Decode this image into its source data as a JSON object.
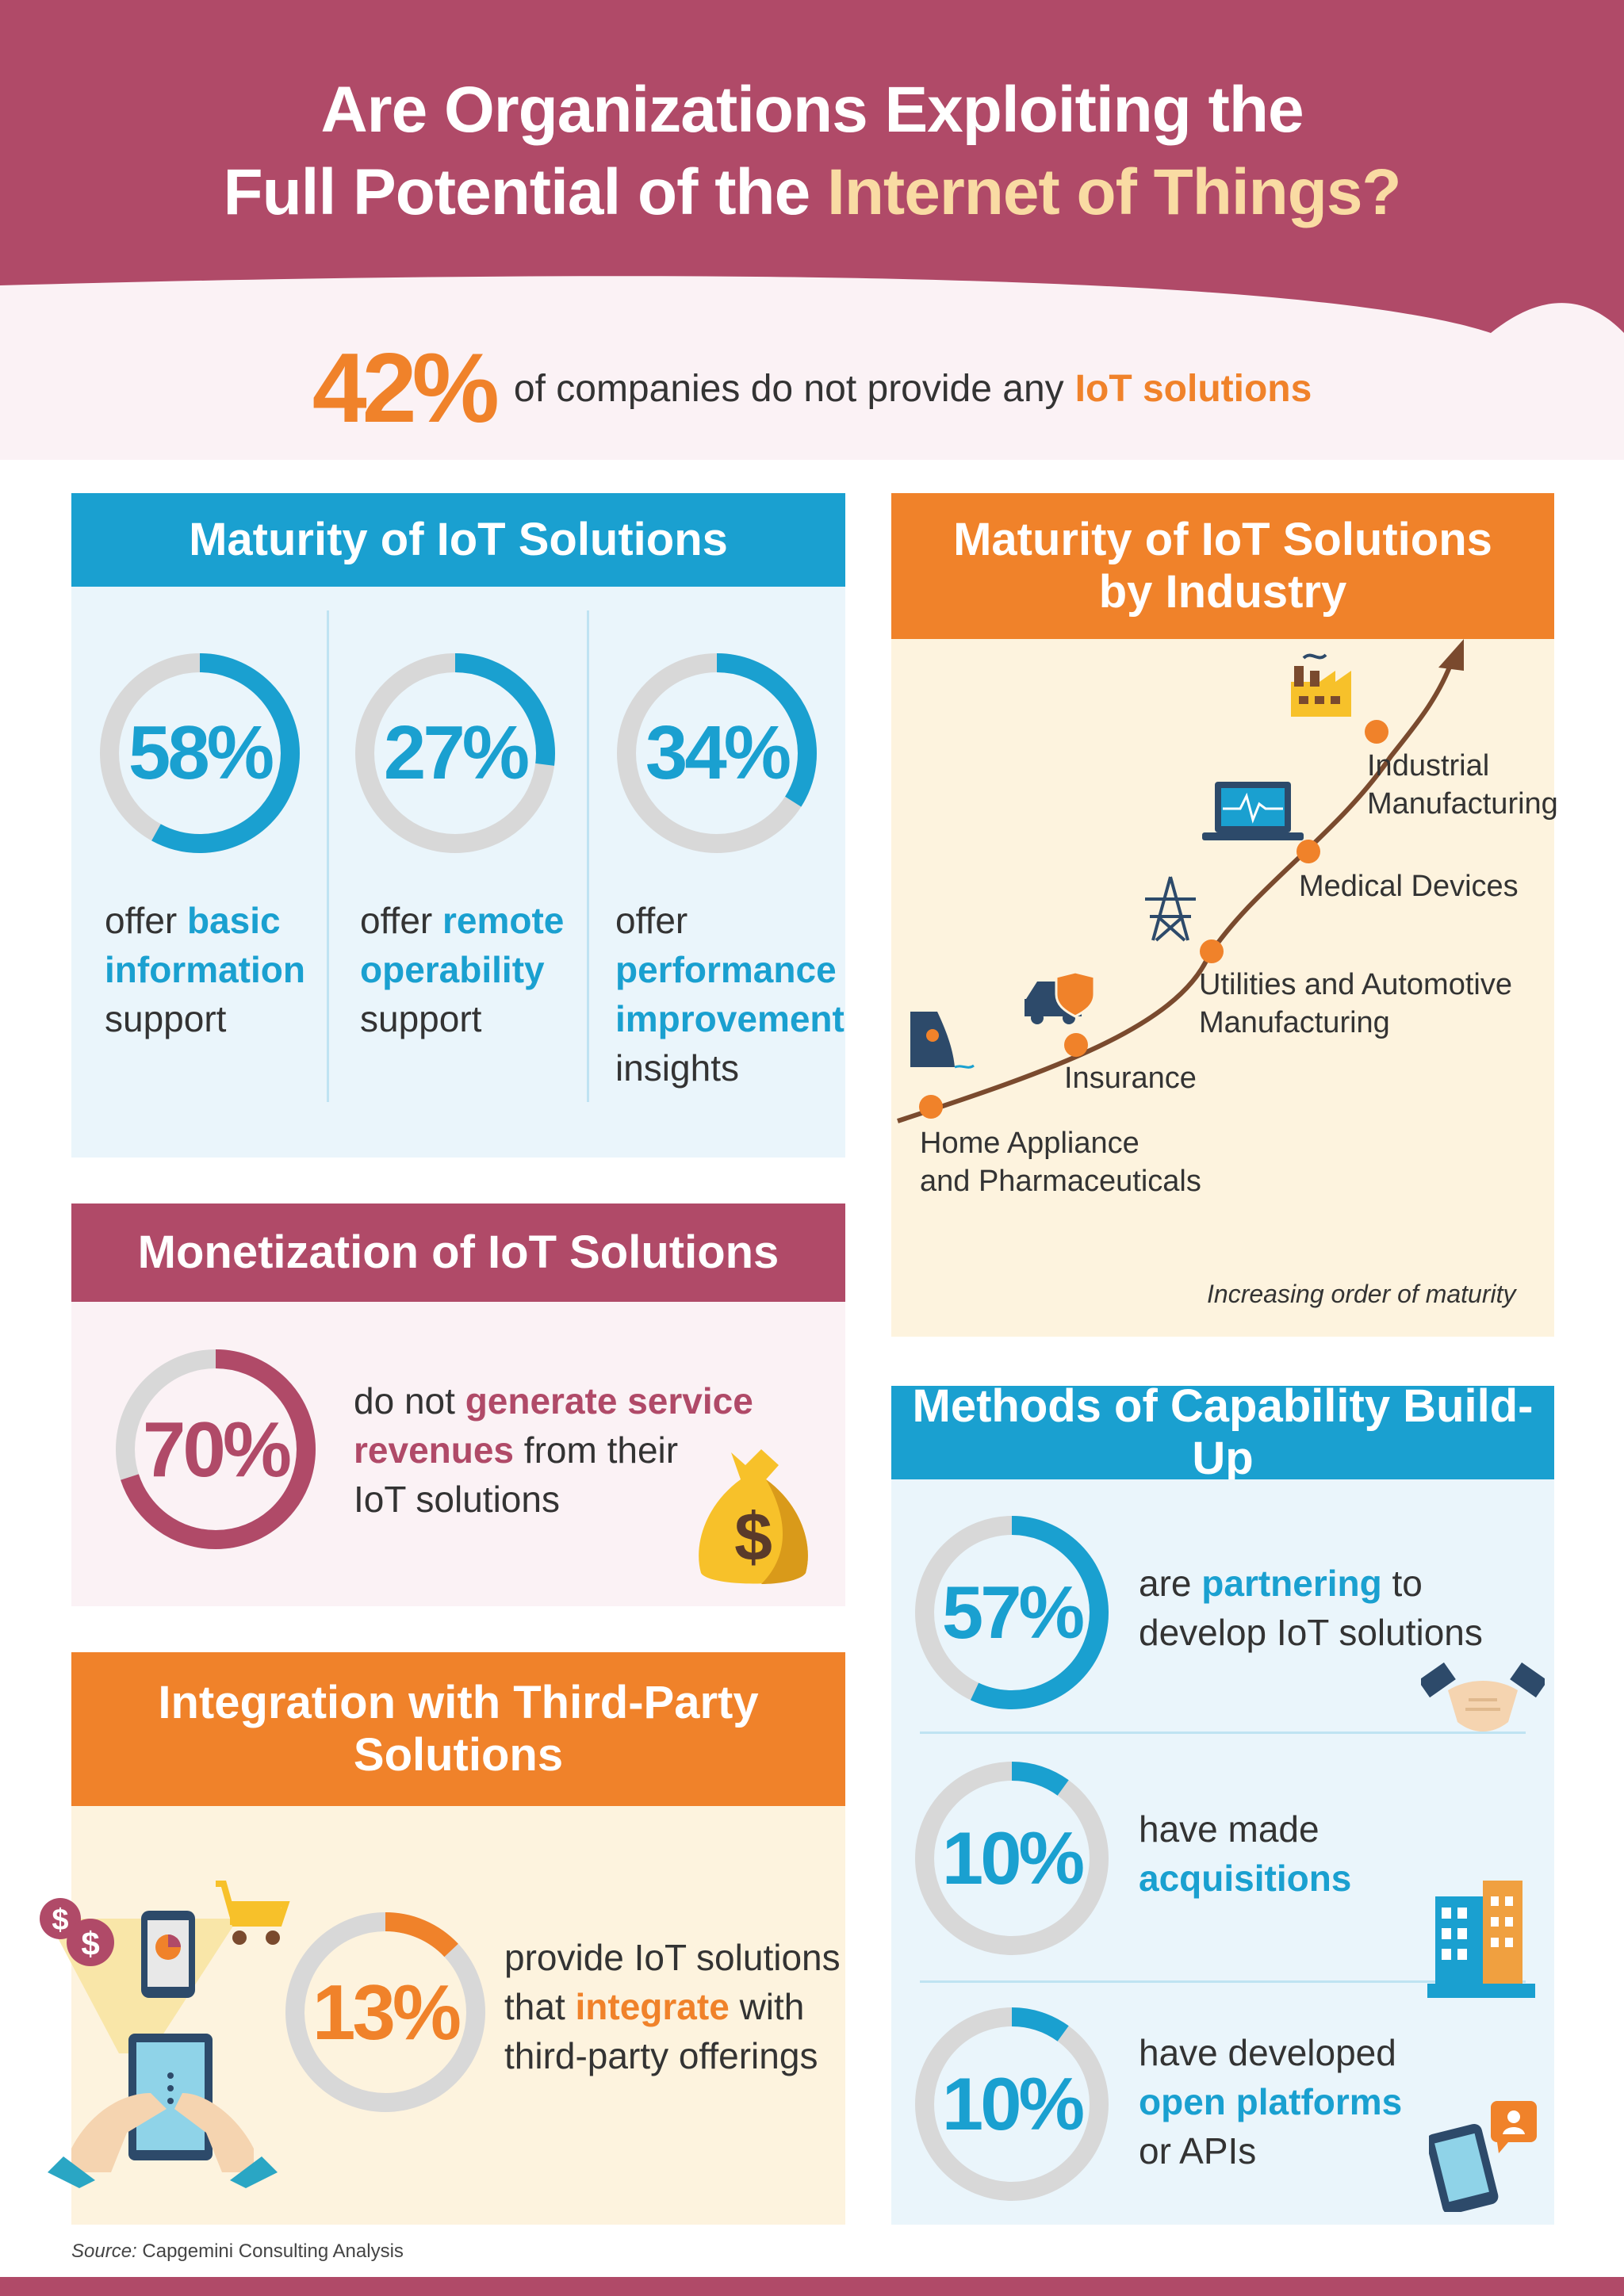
{
  "header": {
    "title_line1": "Are Organizations Exploiting the",
    "title_line2_prefix": "Full Potential of the",
    "title_line2_accent": "Internet of Things?"
  },
  "headline": {
    "stat": "42%",
    "text": "of companies do not provide any",
    "accent": "IoT solutions"
  },
  "colors": {
    "plum": "#b04a68",
    "blue": "#1aa0d0",
    "orange": "#f0822a",
    "gold": "#f9dba3",
    "ring_track": "#d8d8d8"
  },
  "maturity": {
    "title": "Maturity of IoT Solutions",
    "items": [
      {
        "value": "58%",
        "d1": "offer",
        "d2": "basic",
        "d3": "information",
        "d4": "support"
      },
      {
        "value": "27%",
        "d1": "offer",
        "d2": "remote",
        "d3": "operability",
        "d4": "support"
      },
      {
        "value": "34%",
        "d1": "offer",
        "d2": "performance",
        "d3": "improvement",
        "d4": "insights"
      }
    ]
  },
  "industry": {
    "title_line1": "Maturity of IoT Solutions",
    "title_line2": "by Industry",
    "stages": [
      {
        "line1": "Home Appliance",
        "line2": "and Pharmaceuticals",
        "icon": "iron-icon"
      },
      {
        "line1": "Insurance",
        "line2": "",
        "icon": "car-shield-icon"
      },
      {
        "line1": "Utilities and Automotive",
        "line2": "Manufacturing",
        "icon": "power-tower-icon"
      },
      {
        "line1": "Medical Devices",
        "line2": "",
        "icon": "laptop-heartbeat-icon"
      },
      {
        "line1": "Industrial",
        "line2": "Manufacturing",
        "icon": "factory-icon"
      }
    ],
    "caption": "Increasing order of maturity"
  },
  "monetization": {
    "title": "Monetization of IoT Solutions",
    "value": "70%",
    "d1": "do not",
    "d2": "generate service",
    "d3": "revenues",
    "d4": "from their",
    "d5": "IoT solutions",
    "icon": "money-bag-icon"
  },
  "integration": {
    "title_line1": "Integration with Third-Party",
    "title_line2": "Solutions",
    "value": "13%",
    "d1": "provide IoT solutions",
    "d2": "that",
    "d3": "integrate",
    "d4": "with",
    "d5": "third-party offerings",
    "icon": "tablet-shopping-icon"
  },
  "capability": {
    "title": "Methods of Capability Build-Up",
    "items": [
      {
        "value": "57%",
        "d1": "are",
        "d2": "partnering",
        "d3": "to",
        "d4": "develop IoT solutions",
        "icon": "handshake-icon"
      },
      {
        "value": "10%",
        "d1": "have made",
        "d2": "acquisitions",
        "d3": "",
        "d4": "",
        "icon": "buildings-icon"
      },
      {
        "value": "10%",
        "d1": "have developed",
        "d2": "open platforms",
        "d3": "or APIs",
        "d4": "",
        "icon": "smartphone-icon"
      }
    ]
  },
  "chart_data": [
    {
      "type": "pie",
      "title": "Maturity of IoT Solutions",
      "categories": [
        "offer basic information support"
      ],
      "values": [
        58
      ],
      "unit": "%"
    },
    {
      "type": "pie",
      "title": "Maturity of IoT Solutions",
      "categories": [
        "offer remote operability support"
      ],
      "values": [
        27
      ],
      "unit": "%"
    },
    {
      "type": "pie",
      "title": "Maturity of IoT Solutions",
      "categories": [
        "offer performance improvement insights"
      ],
      "values": [
        34
      ],
      "unit": "%"
    },
    {
      "type": "pie",
      "title": "Monetization of IoT Solutions",
      "categories": [
        "do not generate service revenues from their IoT solutions"
      ],
      "values": [
        70
      ],
      "unit": "%"
    },
    {
      "type": "pie",
      "title": "Integration with Third-Party Solutions",
      "categories": [
        "provide IoT solutions that integrate with third-party offerings"
      ],
      "values": [
        13
      ],
      "unit": "%"
    },
    {
      "type": "pie",
      "title": "Methods of Capability Build-Up",
      "categories": [
        "are partnering to develop IoT solutions"
      ],
      "values": [
        57
      ],
      "unit": "%"
    },
    {
      "type": "pie",
      "title": "Methods of Capability Build-Up",
      "categories": [
        "have made acquisitions"
      ],
      "values": [
        10
      ],
      "unit": "%"
    },
    {
      "type": "pie",
      "title": "Methods of Capability Build-Up",
      "categories": [
        "have developed open platforms or APIs"
      ],
      "values": [
        10
      ],
      "unit": "%"
    },
    {
      "type": "line",
      "title": "Maturity of IoT Solutions by Industry",
      "categories": [
        "Home Appliance and Pharmaceuticals",
        "Insurance",
        "Utilities and Automotive Manufacturing",
        "Medical Devices",
        "Industrial Manufacturing"
      ],
      "values": [
        1,
        2,
        3,
        4,
        5
      ],
      "xlabel": "",
      "ylabel": ""
    }
  ]
}
